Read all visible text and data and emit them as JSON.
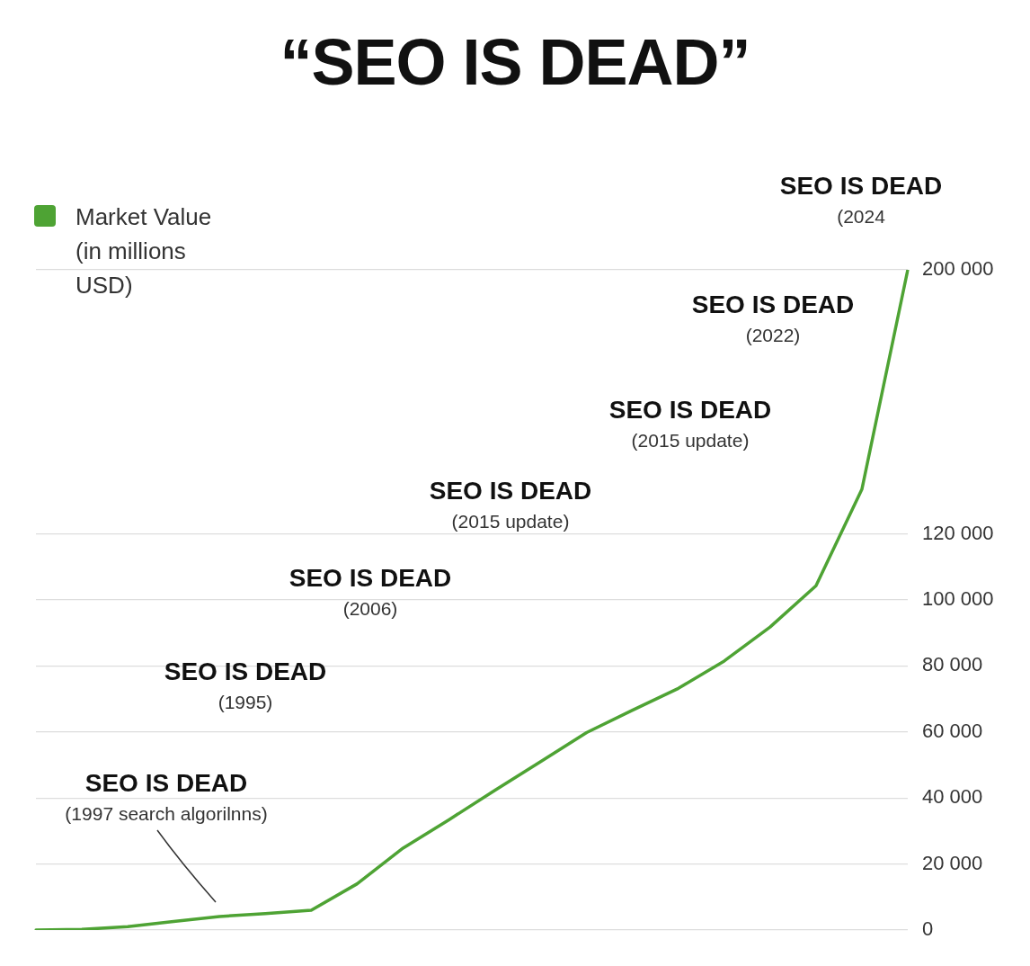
{
  "chart_data": {
    "type": "line",
    "title": "“SEO IS DEAD”",
    "categories": [
      null,
      null,
      null,
      null,
      null,
      null,
      null,
      null,
      null,
      null,
      null,
      null,
      null,
      null,
      null,
      null,
      null,
      null,
      null,
      null
    ],
    "series": [
      {
        "name": "Market Value (in millions USD)",
        "color": "#4ea334",
        "values": [
          0,
          200,
          1000,
          2600,
          4100,
          5000,
          6000,
          14000,
          24800,
          33400,
          42300,
          51000,
          59800,
          66600,
          73200,
          81500,
          91800,
          104300,
          133500,
          200000
        ]
      }
    ],
    "ylim": [
      0,
      200000
    ],
    "yticks": [
      0,
      {
        "value": 20000,
        "label": "20 000"
      },
      {
        "value": 40000,
        "label": "40 000"
      },
      {
        "value": 60000,
        "label": "60 000"
      },
      {
        "value": 80000,
        "label": "80 000"
      },
      {
        "value": 100000,
        "label": "100 000"
      },
      {
        "value": 120000,
        "label": "120 000"
      },
      {
        "value": 200000,
        "label": "200 000"
      }
    ],
    "grid": "y",
    "legend": "top left",
    "marker": "none",
    "annotations": [
      "SEO IS DEAD\n(1997 search algorilnns)",
      "SEO IS DEAD\n(1995)",
      "SEO IS DEAD\n(2006)",
      "SEO IS DEAD\n(2015 update)",
      "SEO IS DEAD\n(2015 update)",
      "SEO IS DEAD\n(2022)",
      "SEO IS DEAD\n(2024"
    ]
  }
}
